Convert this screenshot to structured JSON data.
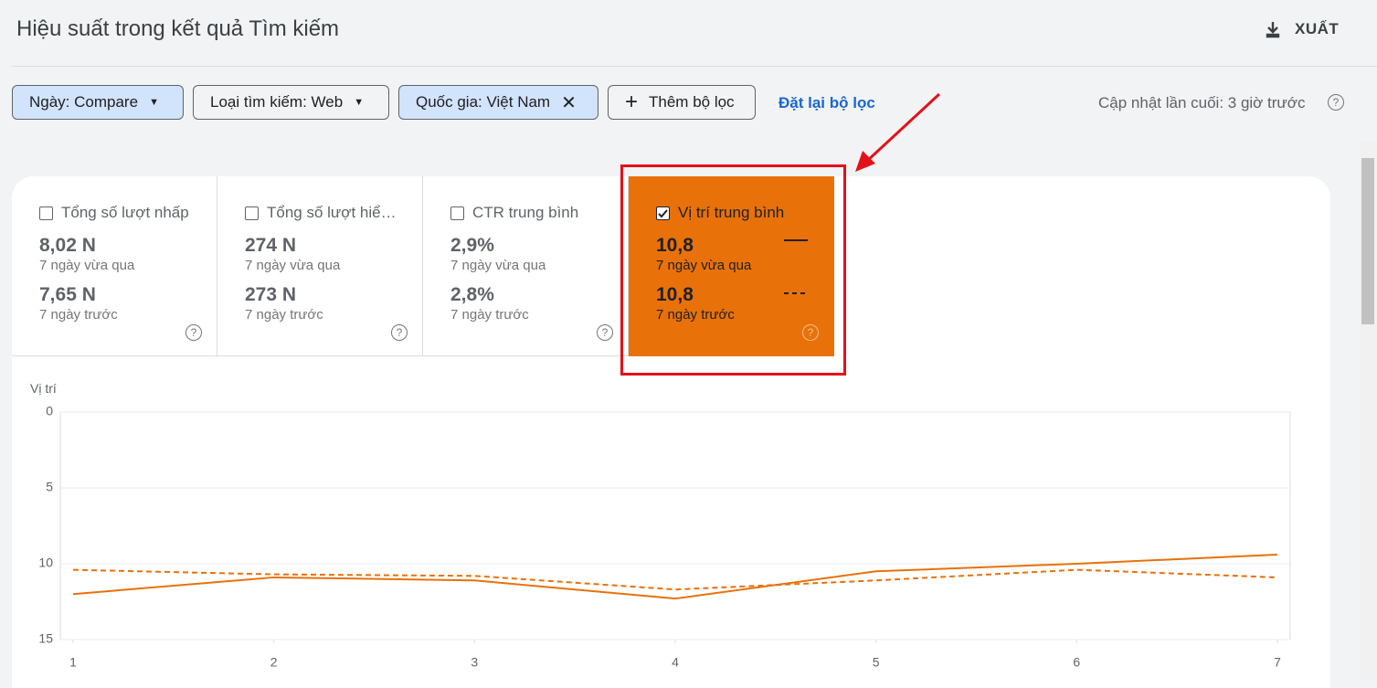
{
  "header": {
    "title": "Hiệu suất trong kết quả Tìm kiếm",
    "export": "XUẤT"
  },
  "filters": {
    "chips": [
      "Ngày: Compare",
      "Loại tìm kiếm: Web",
      "Quốc gia: Việt Nam"
    ],
    "add": "Thêm bộ lọc",
    "reset": "Đặt lại bộ lọc",
    "updated": "Cập nhật lần cuối: 3 giờ trước"
  },
  "metrics": [
    {
      "label": "Tổng số lượt nhấp",
      "current_value": "8,02 N",
      "current_period": "7 ngày vừa qua",
      "previous_value": "7,65 N",
      "previous_period": "7 ngày trước"
    },
    {
      "label": "Tổng số lượt hiể…",
      "current_value": "274 N",
      "current_period": "7 ngày vừa qua",
      "previous_value": "273 N",
      "previous_period": "7 ngày trước"
    },
    {
      "label": "CTR trung bình",
      "current_value": "2,9%",
      "current_period": "7 ngày vừa qua",
      "previous_value": "2,8%",
      "previous_period": "7 ngày trước"
    },
    {
      "label": "Vị trí trung bình",
      "current_value": "10,8",
      "current_period": "7 ngày vừa qua",
      "previous_value": "10,8",
      "previous_period": "7 ngày trước"
    }
  ],
  "chart_data": {
    "type": "line",
    "y_label": "Vị trí",
    "x": [
      1,
      2,
      3,
      4,
      5,
      6,
      7
    ],
    "xlim": [
      1,
      7
    ],
    "xticks": [
      1,
      2,
      3,
      4,
      5,
      6,
      7
    ],
    "ylim": [
      0,
      15
    ],
    "yticks": [
      0,
      5,
      10,
      15
    ],
    "y_inverted": true,
    "grid": true,
    "series": [
      {
        "color": "#e8710a",
        "line_style": "solid",
        "values": [
          12.0,
          10.9,
          11.1,
          12.3,
          10.5,
          10.0,
          9.4
        ]
      },
      {
        "color": "#e8710a",
        "line_style": "dashed",
        "values": [
          10.4,
          10.7,
          10.8,
          11.7,
          11.1,
          10.4,
          10.9
        ]
      }
    ]
  }
}
